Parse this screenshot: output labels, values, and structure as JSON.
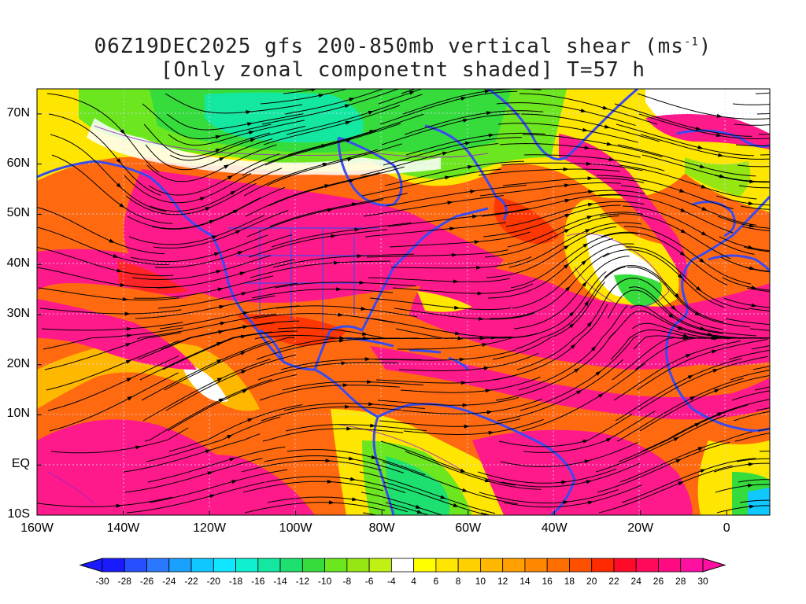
{
  "title": {
    "line1": "06Z19DEC2025 gfs 200-850mb vertical shear (ms",
    "line1_sup": "-1",
    "line1_end": ")",
    "line2": "[Only zonal componetnt shaded] T=57 h"
  },
  "map": {
    "lon_range": [
      -160,
      10
    ],
    "lat_range": [
      -10,
      75
    ],
    "lat_labels": [
      "70N",
      "60N",
      "50N",
      "40N",
      "30N",
      "20N",
      "10N",
      "EQ",
      "10S"
    ],
    "lat_values": [
      70,
      60,
      50,
      40,
      30,
      20,
      10,
      0,
      -10
    ],
    "lon_labels": [
      "160W",
      "140W",
      "120W",
      "100W",
      "80W",
      "60W",
      "40W",
      "20W",
      "0"
    ],
    "lon_values": [
      -160,
      -140,
      -120,
      -100,
      -80,
      -60,
      -40,
      -20,
      0
    ],
    "field": "zonal shear (ms-1)",
    "coastline_color": "#3a4bf0",
    "streamline_color": "#000000"
  },
  "colorbar": {
    "labels": [
      "-30",
      "-28",
      "-26",
      "-24",
      "-22",
      "-20",
      "-18",
      "-16",
      "-14",
      "-12",
      "-10",
      "-8",
      "-6",
      "-4",
      "4",
      "6",
      "8",
      "10",
      "12",
      "14",
      "16",
      "18",
      "20",
      "22",
      "24",
      "26",
      "28",
      "30"
    ],
    "colors": [
      "#1a1aff",
      "#2650ff",
      "#2a78ff",
      "#1aa0ff",
      "#10c8ff",
      "#10e6ff",
      "#10f0d0",
      "#14e8a0",
      "#1ee070",
      "#36dc3c",
      "#6ce61e",
      "#96e614",
      "#c0f014",
      "#ffffff",
      "#ffff00",
      "#ffe600",
      "#ffd000",
      "#ffb800",
      "#ff9f00",
      "#ff8800",
      "#ff6e00",
      "#ff5000",
      "#ff2a00",
      "#ff0a28",
      "#ff0a5a",
      "#ff0a82",
      "#ff10a0"
    ]
  }
}
